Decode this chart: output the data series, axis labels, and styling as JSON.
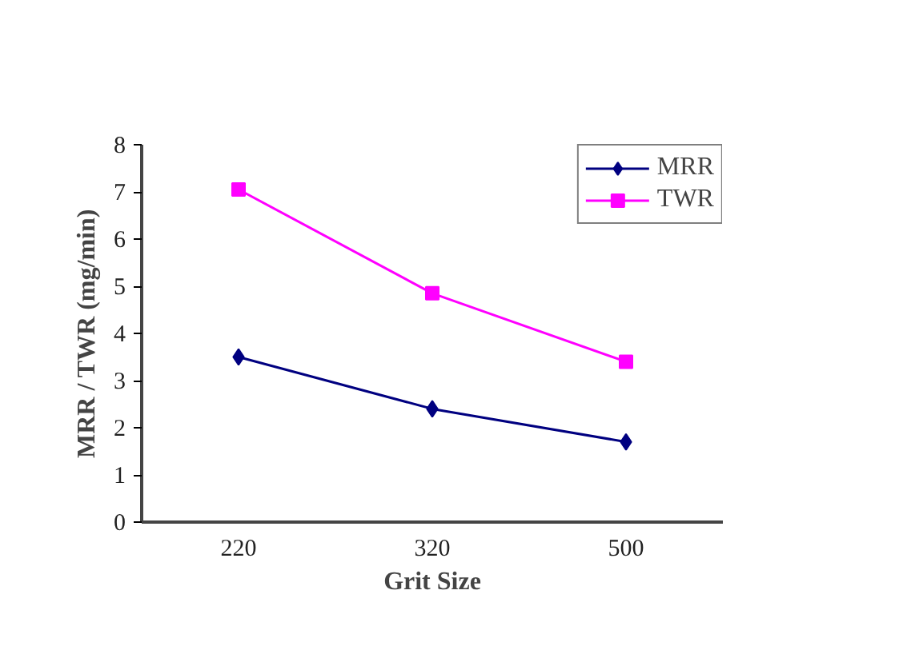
{
  "chart_data": {
    "type": "line",
    "xlabel": "Grit Size",
    "ylabel": "MRR / TWR (mg/min)",
    "categories": [
      "220",
      "320",
      "500"
    ],
    "series": [
      {
        "name": "MRR",
        "color": "#000080",
        "values": [
          3.5,
          2.4,
          1.7
        ],
        "marker": "diamond"
      },
      {
        "name": "TWR",
        "color": "#ff00ff",
        "values": [
          7.05,
          4.85,
          3.4
        ],
        "marker": "square"
      }
    ],
    "ylim": [
      0,
      8
    ],
    "yticks": [
      0,
      1,
      2,
      3,
      4,
      5,
      6,
      7,
      8
    ],
    "grid": false,
    "legend": "top right",
    "line_style": "solid"
  }
}
